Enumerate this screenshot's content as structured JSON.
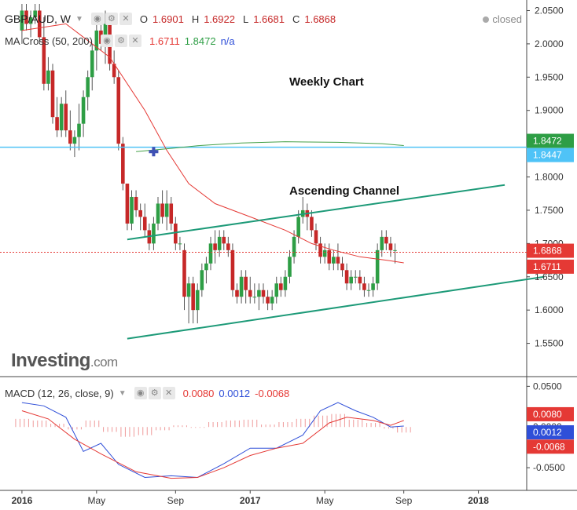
{
  "symbol": {
    "name": "GBP/AUD, W",
    "icon": "chevron-down-icon"
  },
  "ohlc": {
    "o_label": "O",
    "o": "1.6901",
    "h_label": "H",
    "h": "1.6922",
    "l_label": "L",
    "l": "1.6681",
    "c_label": "C",
    "c": "1.6868"
  },
  "status": "closed",
  "ma_legend": {
    "label": "MA Cross (50, 200)",
    "v1": "1.6711",
    "v2": "1.8472",
    "v3": "n/a"
  },
  "macd_legend": {
    "label": "MACD (12, 26, close, 9)",
    "v1": "0.0080",
    "v2": "0.0012",
    "v3": "-0.0068"
  },
  "annotations": {
    "weekly": "Weekly Chart",
    "channel": "Ascending Channel"
  },
  "watermark": {
    "brand": "Investing",
    "domain": ".com"
  },
  "colors": {
    "up": "#26a69a",
    "up_body": "#2e9e45",
    "down": "#c62828",
    "ma50": "#e53935",
    "ma200": "#43a047",
    "hline": "#4fc3f7",
    "channel": "#1d9a78",
    "macd": "#2f4fd8",
    "signal": "#e53935"
  },
  "chart_data": [
    {
      "type": "candlestick",
      "title": "GBP/AUD, W",
      "y_ticks": [
        "2.0500",
        "2.0000",
        "1.9500",
        "1.9000",
        "1.8500",
        "1.8000",
        "1.7500",
        "1.7000",
        "1.6500",
        "1.6000",
        "1.5500"
      ],
      "ylim": [
        1.5,
        2.06
      ],
      "x_ticks": [
        "2016",
        "May",
        "Sep",
        "2017",
        "May",
        "Sep",
        "2018"
      ],
      "x_tick_pos": [
        0,
        17,
        35,
        52,
        69,
        87,
        104
      ],
      "xlim": [
        -5,
        115
      ],
      "price_labels": [
        {
          "value": 1.8472,
          "label": "1.8472",
          "color": "#2e9e45"
        },
        {
          "value": 1.8447,
          "label": "1.8447",
          "color": "#4fc3f7"
        },
        {
          "value": 1.6868,
          "label": "1.6868",
          "color": "#e53935"
        },
        {
          "value": 1.6711,
          "label": "1.6711",
          "color": "#e53935"
        }
      ],
      "horizontal_line": 1.8447,
      "current_price_line": 1.6868,
      "candles": [
        [
          2.02,
          2.06,
          2.0,
          2.05
        ],
        [
          2.05,
          2.06,
          2.02,
          2.03
        ],
        [
          2.03,
          2.05,
          2.01,
          2.04
        ],
        [
          2.04,
          2.06,
          2.03,
          2.05
        ],
        [
          2.05,
          2.06,
          2.0,
          2.01
        ],
        [
          2.01,
          2.04,
          1.93,
          1.94
        ],
        [
          1.94,
          1.98,
          1.93,
          1.96
        ],
        [
          1.96,
          1.97,
          1.88,
          1.89
        ],
        [
          1.89,
          1.92,
          1.86,
          1.87
        ],
        [
          1.87,
          1.92,
          1.86,
          1.91
        ],
        [
          1.91,
          1.93,
          1.86,
          1.87
        ],
        [
          1.87,
          1.9,
          1.84,
          1.85
        ],
        [
          1.85,
          1.87,
          1.83,
          1.86
        ],
        [
          1.86,
          1.91,
          1.84,
          1.88
        ],
        [
          1.88,
          1.93,
          1.86,
          1.92
        ],
        [
          1.92,
          1.96,
          1.9,
          1.95
        ],
        [
          1.95,
          2.0,
          1.93,
          1.99
        ],
        [
          1.99,
          2.03,
          1.96,
          2.02
        ],
        [
          2.02,
          2.04,
          1.99,
          2.0
        ],
        [
          2.0,
          2.05,
          1.97,
          2.03
        ],
        [
          2.03,
          2.04,
          1.96,
          1.97
        ],
        [
          1.97,
          1.99,
          1.94,
          1.95
        ],
        [
          1.95,
          1.96,
          1.84,
          1.85
        ],
        [
          1.85,
          1.86,
          1.78,
          1.79
        ],
        [
          1.79,
          1.79,
          1.72,
          1.73
        ],
        [
          1.73,
          1.78,
          1.72,
          1.77
        ],
        [
          1.77,
          1.78,
          1.74,
          1.75
        ],
        [
          1.75,
          1.76,
          1.72,
          1.74
        ],
        [
          1.74,
          1.76,
          1.71,
          1.72
        ],
        [
          1.72,
          1.73,
          1.69,
          1.7
        ],
        [
          1.7,
          1.74,
          1.69,
          1.73
        ],
        [
          1.73,
          1.77,
          1.72,
          1.76
        ],
        [
          1.76,
          1.78,
          1.73,
          1.74
        ],
        [
          1.74,
          1.78,
          1.72,
          1.76
        ],
        [
          1.76,
          1.77,
          1.72,
          1.73
        ],
        [
          1.73,
          1.74,
          1.69,
          1.7
        ],
        [
          1.7,
          1.71,
          1.69,
          1.7
        ],
        [
          1.69,
          1.7,
          1.6,
          1.62
        ],
        [
          1.62,
          1.65,
          1.58,
          1.64
        ],
        [
          1.64,
          1.65,
          1.58,
          1.6
        ],
        [
          1.6,
          1.64,
          1.58,
          1.63
        ],
        [
          1.63,
          1.67,
          1.62,
          1.66
        ],
        [
          1.66,
          1.68,
          1.64,
          1.67
        ],
        [
          1.67,
          1.71,
          1.66,
          1.7
        ],
        [
          1.7,
          1.72,
          1.67,
          1.69
        ],
        [
          1.69,
          1.72,
          1.68,
          1.71
        ],
        [
          1.71,
          1.72,
          1.69,
          1.7
        ],
        [
          1.7,
          1.71,
          1.68,
          1.69
        ],
        [
          1.69,
          1.7,
          1.62,
          1.63
        ],
        [
          1.63,
          1.64,
          1.61,
          1.62
        ],
        [
          1.62,
          1.66,
          1.61,
          1.65
        ],
        [
          1.65,
          1.66,
          1.61,
          1.63
        ],
        [
          1.63,
          1.65,
          1.61,
          1.62
        ],
        [
          1.62,
          1.64,
          1.61,
          1.62
        ],
        [
          1.62,
          1.64,
          1.6,
          1.63
        ],
        [
          1.63,
          1.64,
          1.61,
          1.62
        ],
        [
          1.62,
          1.63,
          1.6,
          1.61
        ],
        [
          1.61,
          1.63,
          1.6,
          1.62
        ],
        [
          1.62,
          1.65,
          1.61,
          1.64
        ],
        [
          1.64,
          1.65,
          1.62,
          1.63
        ],
        [
          1.63,
          1.66,
          1.62,
          1.65
        ],
        [
          1.65,
          1.69,
          1.64,
          1.68
        ],
        [
          1.68,
          1.72,
          1.67,
          1.71
        ],
        [
          1.71,
          1.75,
          1.7,
          1.74
        ],
        [
          1.74,
          1.77,
          1.73,
          1.75
        ],
        [
          1.75,
          1.76,
          1.72,
          1.74
        ],
        [
          1.74,
          1.75,
          1.71,
          1.72
        ],
        [
          1.72,
          1.73,
          1.69,
          1.7
        ],
        [
          1.7,
          1.71,
          1.67,
          1.68
        ],
        [
          1.68,
          1.7,
          1.67,
          1.69
        ],
        [
          1.69,
          1.7,
          1.66,
          1.67
        ],
        [
          1.67,
          1.69,
          1.66,
          1.68
        ],
        [
          1.68,
          1.7,
          1.66,
          1.67
        ],
        [
          1.67,
          1.68,
          1.65,
          1.66
        ],
        [
          1.66,
          1.67,
          1.63,
          1.64
        ],
        [
          1.64,
          1.66,
          1.63,
          1.65
        ],
        [
          1.65,
          1.66,
          1.64,
          1.65
        ],
        [
          1.65,
          1.66,
          1.63,
          1.64
        ],
        [
          1.64,
          1.65,
          1.62,
          1.63
        ],
        [
          1.63,
          1.64,
          1.62,
          1.63
        ],
        [
          1.63,
          1.65,
          1.62,
          1.64
        ],
        [
          1.64,
          1.7,
          1.63,
          1.69
        ],
        [
          1.69,
          1.72,
          1.68,
          1.71
        ],
        [
          1.71,
          1.72,
          1.69,
          1.7
        ],
        [
          1.7,
          1.71,
          1.68,
          1.69
        ],
        [
          1.69,
          1.7,
          1.67,
          1.69
        ]
      ],
      "ma50": [
        [
          0,
          2.02
        ],
        [
          10,
          2.03
        ],
        [
          20,
          1.98
        ],
        [
          28,
          1.9
        ],
        [
          33,
          1.84
        ],
        [
          38,
          1.79
        ],
        [
          44,
          1.76
        ],
        [
          52,
          1.74
        ],
        [
          60,
          1.72
        ],
        [
          66,
          1.7
        ],
        [
          71,
          1.69
        ],
        [
          77,
          1.68
        ],
        [
          83,
          1.675
        ],
        [
          87,
          1.671
        ]
      ],
      "ma200": [
        [
          26,
          1.838
        ],
        [
          34,
          1.843
        ],
        [
          40,
          1.847
        ],
        [
          50,
          1.851
        ],
        [
          60,
          1.853
        ],
        [
          72,
          1.852
        ],
        [
          82,
          1.85
        ],
        [
          87,
          1.8472
        ]
      ],
      "cross_marker": [
        30,
        1.838
      ],
      "channel_upper": [
        [
          24,
          1.706
        ],
        [
          110,
          1.788
        ]
      ],
      "channel_lower": [
        [
          24,
          1.557
        ],
        [
          119,
          1.65
        ]
      ],
      "annotations": [
        {
          "text": "Weekly Chart",
          "x": 50,
          "y": 1.935
        },
        {
          "text": "Ascending Channel",
          "x": 50,
          "y": 1.785
        }
      ]
    },
    {
      "type": "macd",
      "title": "MACD (12, 26, close, 9)",
      "y_ticks": [
        "0.0500",
        "0.0000",
        "-0.0500"
      ],
      "ylim": [
        -0.075,
        0.06
      ],
      "price_labels": [
        {
          "value": 0.008,
          "label": "0.0080",
          "color": "#e53935"
        },
        {
          "value": 0.0012,
          "label": "0.0012",
          "color": "#2f4fd8"
        },
        {
          "value": -0.0068,
          "label": "-0.0068",
          "color": "#e53935"
        }
      ],
      "macd": [
        [
          0,
          0.03
        ],
        [
          5,
          0.026
        ],
        [
          10,
          0.012
        ],
        [
          14,
          -0.03
        ],
        [
          18,
          -0.02
        ],
        [
          22,
          -0.046
        ],
        [
          28,
          -0.062
        ],
        [
          34,
          -0.06
        ],
        [
          40,
          -0.062
        ],
        [
          46,
          -0.045
        ],
        [
          52,
          -0.026
        ],
        [
          58,
          -0.026
        ],
        [
          64,
          -0.01
        ],
        [
          68,
          0.02
        ],
        [
          72,
          0.03
        ],
        [
          76,
          0.02
        ],
        [
          80,
          0.012
        ],
        [
          84,
          0.0
        ],
        [
          87,
          0.0012
        ]
      ],
      "signal": [
        [
          0,
          0.02
        ],
        [
          6,
          0.01
        ],
        [
          12,
          -0.015
        ],
        [
          18,
          -0.033
        ],
        [
          26,
          -0.055
        ],
        [
          34,
          -0.063
        ],
        [
          40,
          -0.062
        ],
        [
          46,
          -0.05
        ],
        [
          52,
          -0.035
        ],
        [
          58,
          -0.026
        ],
        [
          64,
          -0.02
        ],
        [
          70,
          0.005
        ],
        [
          74,
          0.012
        ],
        [
          80,
          0.008
        ],
        [
          84,
          0.002
        ],
        [
          87,
          0.008
        ]
      ],
      "histogram": [
        [
          0,
          0.01
        ],
        [
          4,
          0.008
        ],
        [
          8,
          0.004
        ],
        [
          12,
          -0.003
        ],
        [
          16,
          0.008
        ],
        [
          20,
          -0.006
        ],
        [
          24,
          -0.012
        ],
        [
          28,
          -0.01
        ],
        [
          32,
          -0.004
        ],
        [
          36,
          0.002
        ],
        [
          40,
          -0.001
        ],
        [
          44,
          0.006
        ],
        [
          48,
          0.008
        ],
        [
          52,
          0.009
        ],
        [
          56,
          0.003
        ],
        [
          60,
          0.006
        ],
        [
          64,
          0.01
        ],
        [
          68,
          0.014
        ],
        [
          72,
          0.016
        ],
        [
          76,
          0.009
        ],
        [
          80,
          0.005
        ],
        [
          84,
          -0.002
        ],
        [
          87,
          -0.0068
        ]
      ]
    }
  ]
}
